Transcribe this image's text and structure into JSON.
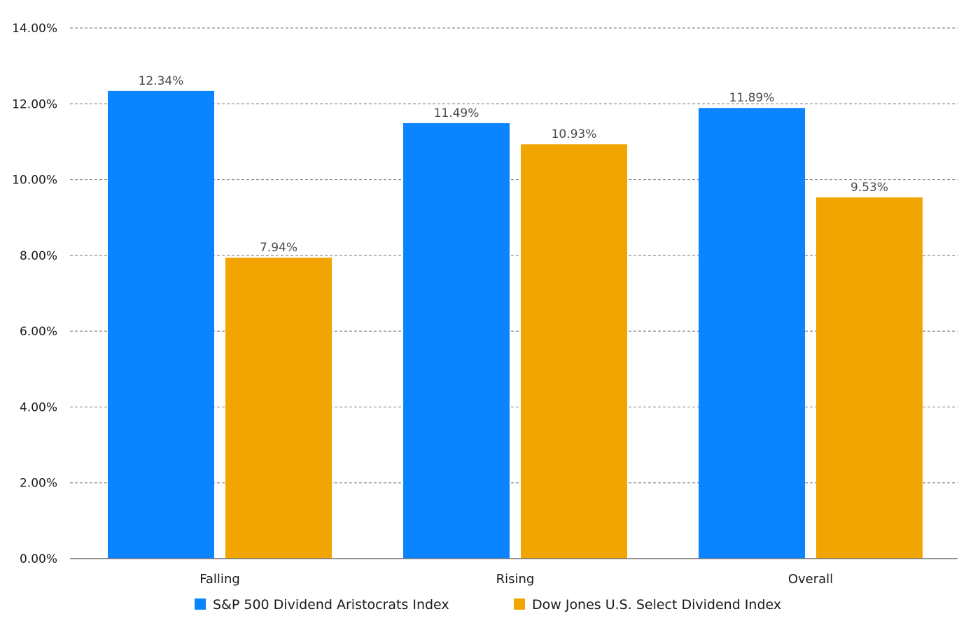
{
  "chart_data": {
    "type": "bar",
    "title": "",
    "xlabel": "",
    "ylabel": "",
    "categories": [
      "Falling",
      "Rising",
      "Overall"
    ],
    "series": [
      {
        "name": "S&P 500 Dividend Aristocrats Index",
        "color": "#0A84FF",
        "values": [
          12.34,
          11.49,
          11.89
        ],
        "labels": [
          "12.34%",
          "11.49%",
          "11.89%"
        ]
      },
      {
        "name": "Dow Jones U.S. Select Dividend Index",
        "color": "#F2A500",
        "values": [
          7.94,
          10.93,
          9.53
        ],
        "labels": [
          "7.94%",
          "10.93%",
          "9.53%"
        ]
      }
    ],
    "ylim": [
      0,
      14
    ],
    "yticks": [
      0,
      2,
      4,
      6,
      8,
      10,
      12,
      14
    ],
    "ytick_labels": [
      "0.00%",
      "2.00%",
      "4.00%",
      "6.00%",
      "8.00%",
      "10.00%",
      "12.00%",
      "14.00%"
    ],
    "grid": true,
    "grid_style": "dashed",
    "legend_position": "bottom"
  }
}
